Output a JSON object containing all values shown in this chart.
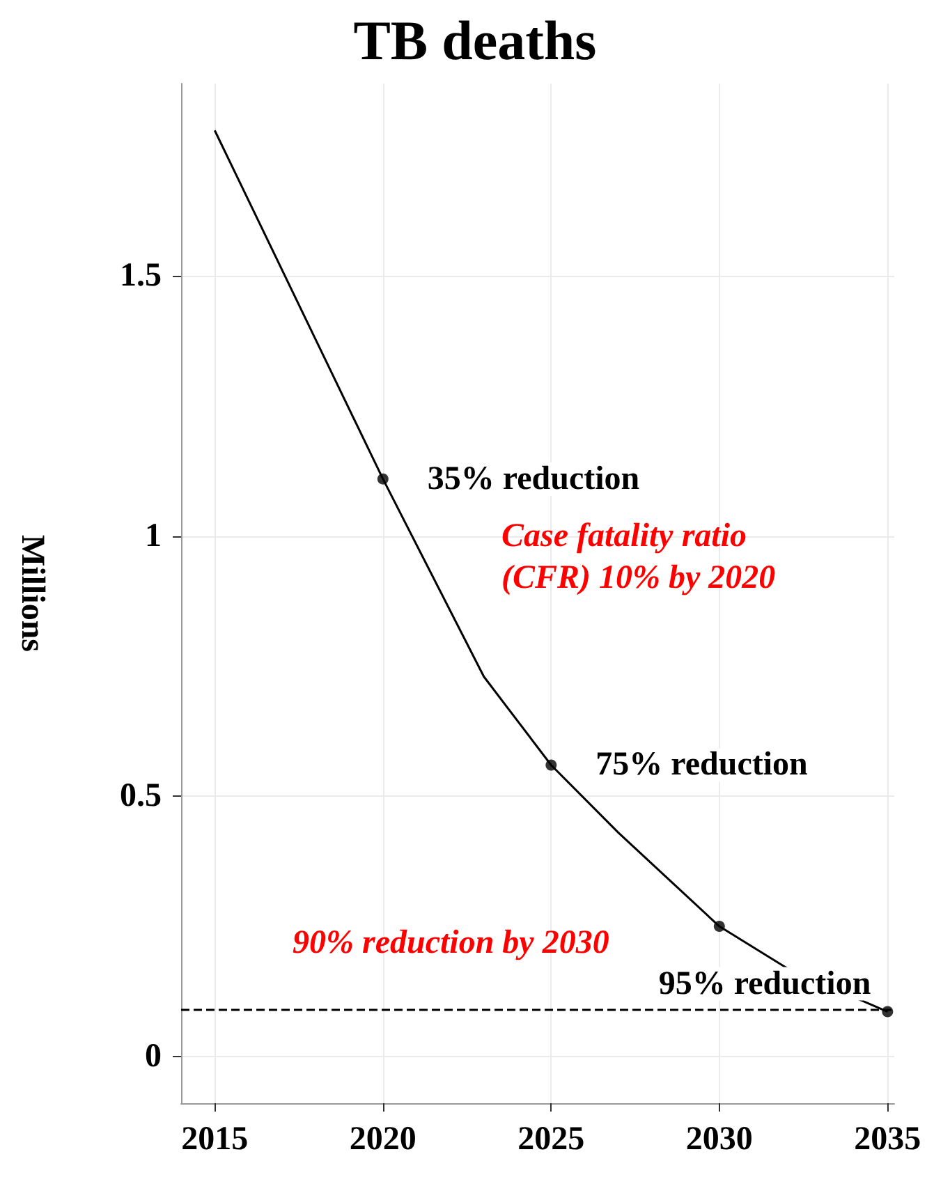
{
  "chart_data": {
    "type": "line",
    "title": "TB deaths",
    "ylabel": "Millions",
    "xlim": [
      2014,
      2035.2
    ],
    "xticks": [
      2015,
      2020,
      2025,
      2030,
      2035
    ],
    "ylim": [
      -0.09,
      1.87
    ],
    "yticks": [
      0,
      {
        "value": 0.5,
        "label": "0.5"
      },
      1,
      {
        "value": 1.5,
        "label": "1.5"
      }
    ],
    "grid": true,
    "series": [
      {
        "type": "line",
        "color": "#000000",
        "marker": "none",
        "line_style": "solid",
        "x": [
          2015,
          2020,
          2023,
          2025,
          2027,
          2030,
          2032,
          2035
        ],
        "values": [
          1.78,
          1.11,
          0.73,
          0.56,
          0.43,
          0.25,
          0.17,
          0.086
        ]
      },
      {
        "type": "scatter",
        "color": "#000000",
        "marker": "circle",
        "x": [
          2020,
          2025,
          2030,
          2035
        ],
        "values": [
          1.11,
          0.56,
          0.25,
          0.086
        ]
      }
    ],
    "ref_lines": [
      {
        "axis": "y",
        "value": 0.086,
        "color": "#000000",
        "line_style": "dashed"
      }
    ],
    "annotations": [
      {
        "text": "35% reduction",
        "x": 2020,
        "y": 1.11
      },
      {
        "text": "75% reduction",
        "x": 2025,
        "y": 0.56
      },
      {
        "text": "95% reduction",
        "x": 2035,
        "y": 0.086
      },
      "Case fatality ratio\n(CFR) 10% by 2020",
      "90% reduction by 2030"
    ]
  }
}
